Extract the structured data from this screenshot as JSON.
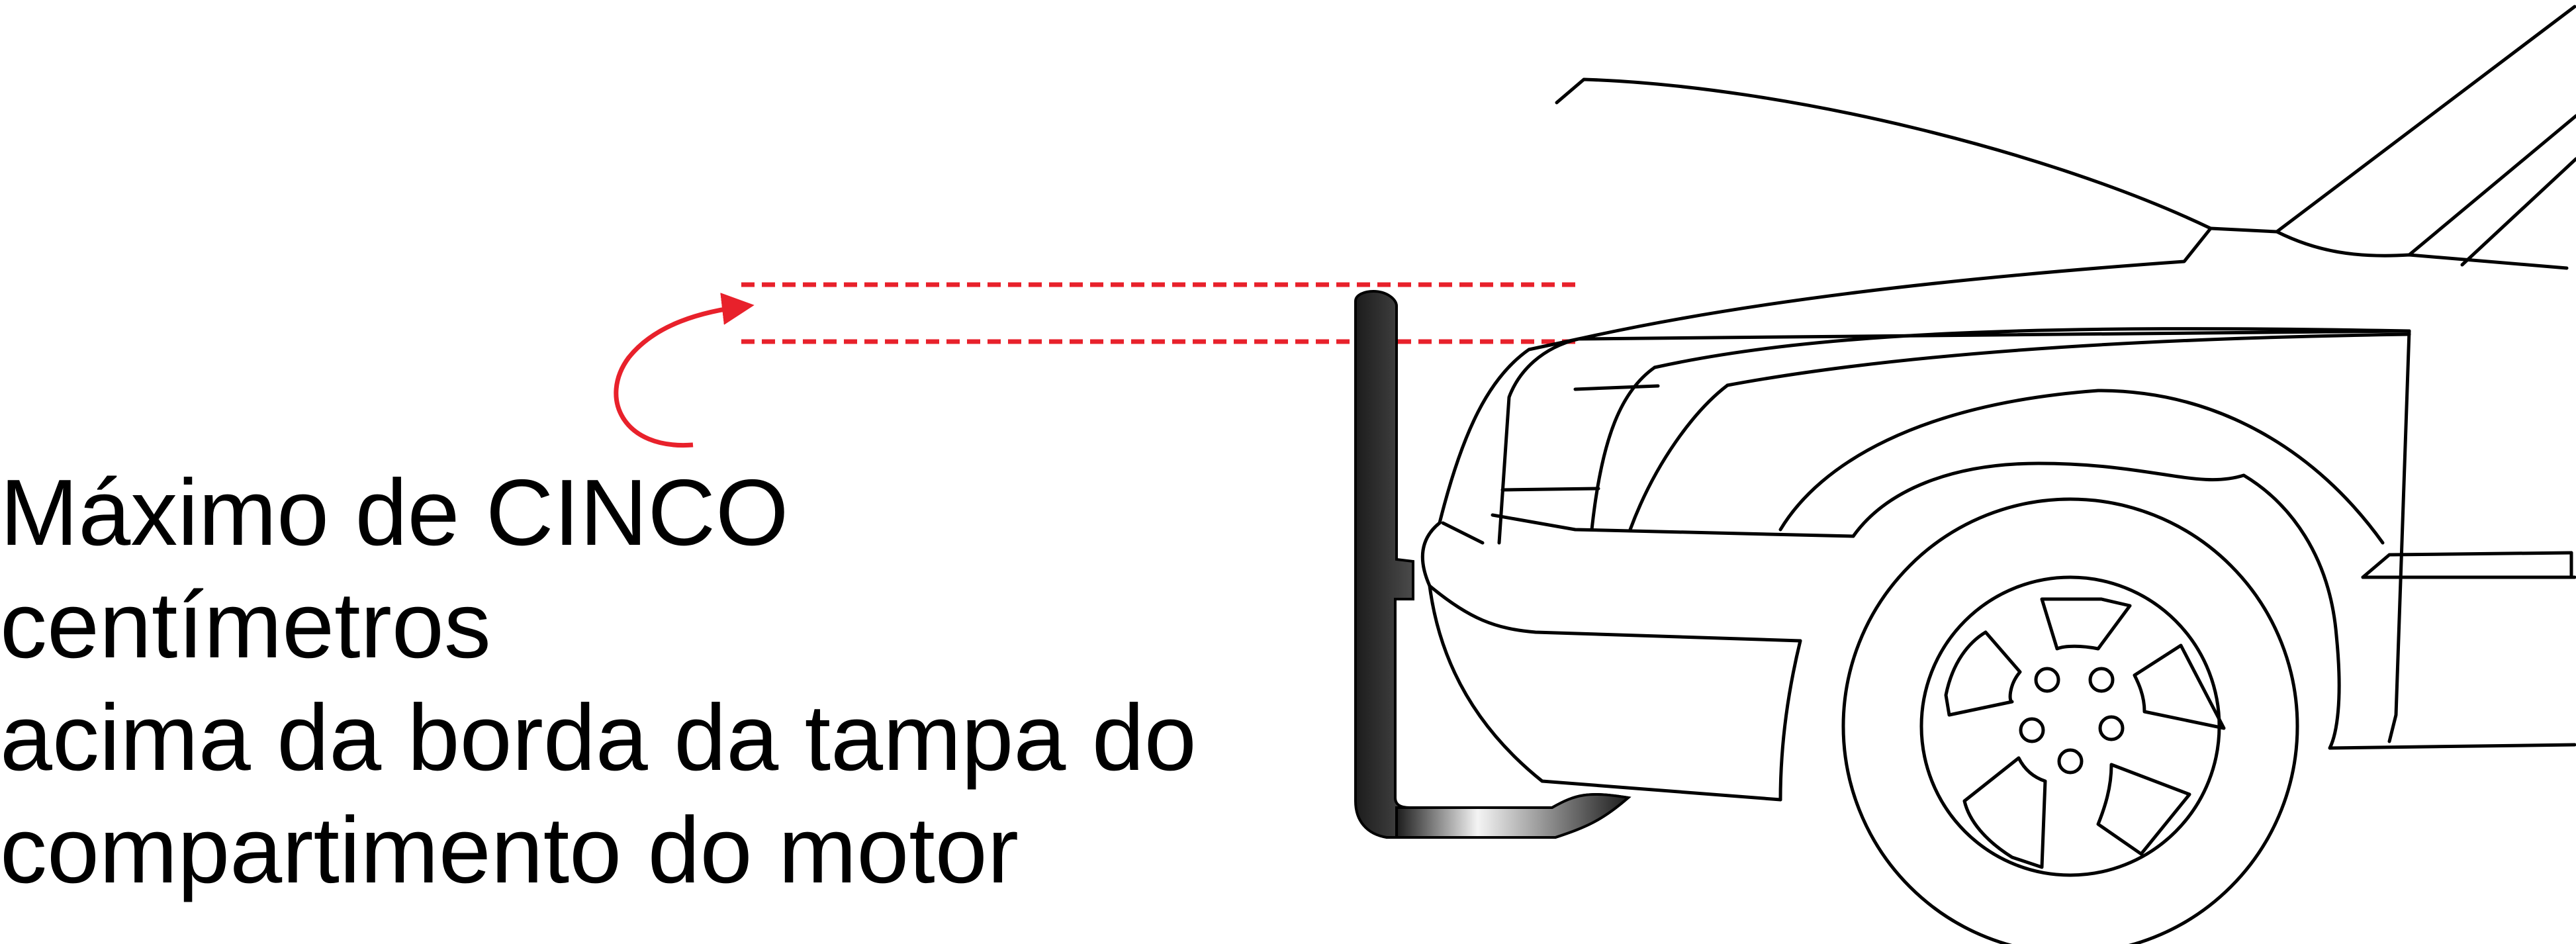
{
  "caption": {
    "lines": [
      "Máximo de CINCO",
      "centímetros",
      "acima da borda da tampa do",
      "compartimento do motor"
    ]
  },
  "colors": {
    "measure_lines": "#e8212b",
    "vehicle_outline": "#000000",
    "prop_gradient_dark": "#1c1c1c",
    "prop_gradient_light": "#f4f4f4"
  },
  "icons": {
    "measure_arrow": "curved-arrow-icon",
    "vehicle": "car-front-outline-icon",
    "wheel": "wheel-icon",
    "hood_prop": "hood-prop-rod-icon"
  }
}
